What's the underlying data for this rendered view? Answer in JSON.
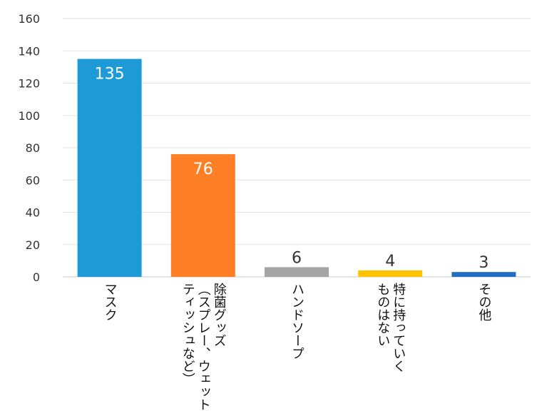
{
  "chart_data": {
    "type": "bar",
    "categories": [
      [
        "マスク"
      ],
      [
        "除菌グッズ",
        "（スプレー、ウェット",
        "ティッシュなど）"
      ],
      [
        "ハンドソープ"
      ],
      [
        "特に持っていく",
        "ものはない"
      ],
      [
        "その他"
      ]
    ],
    "values": [
      135,
      76,
      6,
      4,
      3
    ],
    "colors": [
      "#1E9BD7",
      "#FF7F27",
      "#A5A5A5",
      "#FFC000",
      "#1F6FC5"
    ],
    "ylim": [
      0,
      160
    ],
    "yticks": [
      0,
      20,
      40,
      60,
      80,
      100,
      120,
      140,
      160
    ],
    "grid": true,
    "legend": "none"
  }
}
